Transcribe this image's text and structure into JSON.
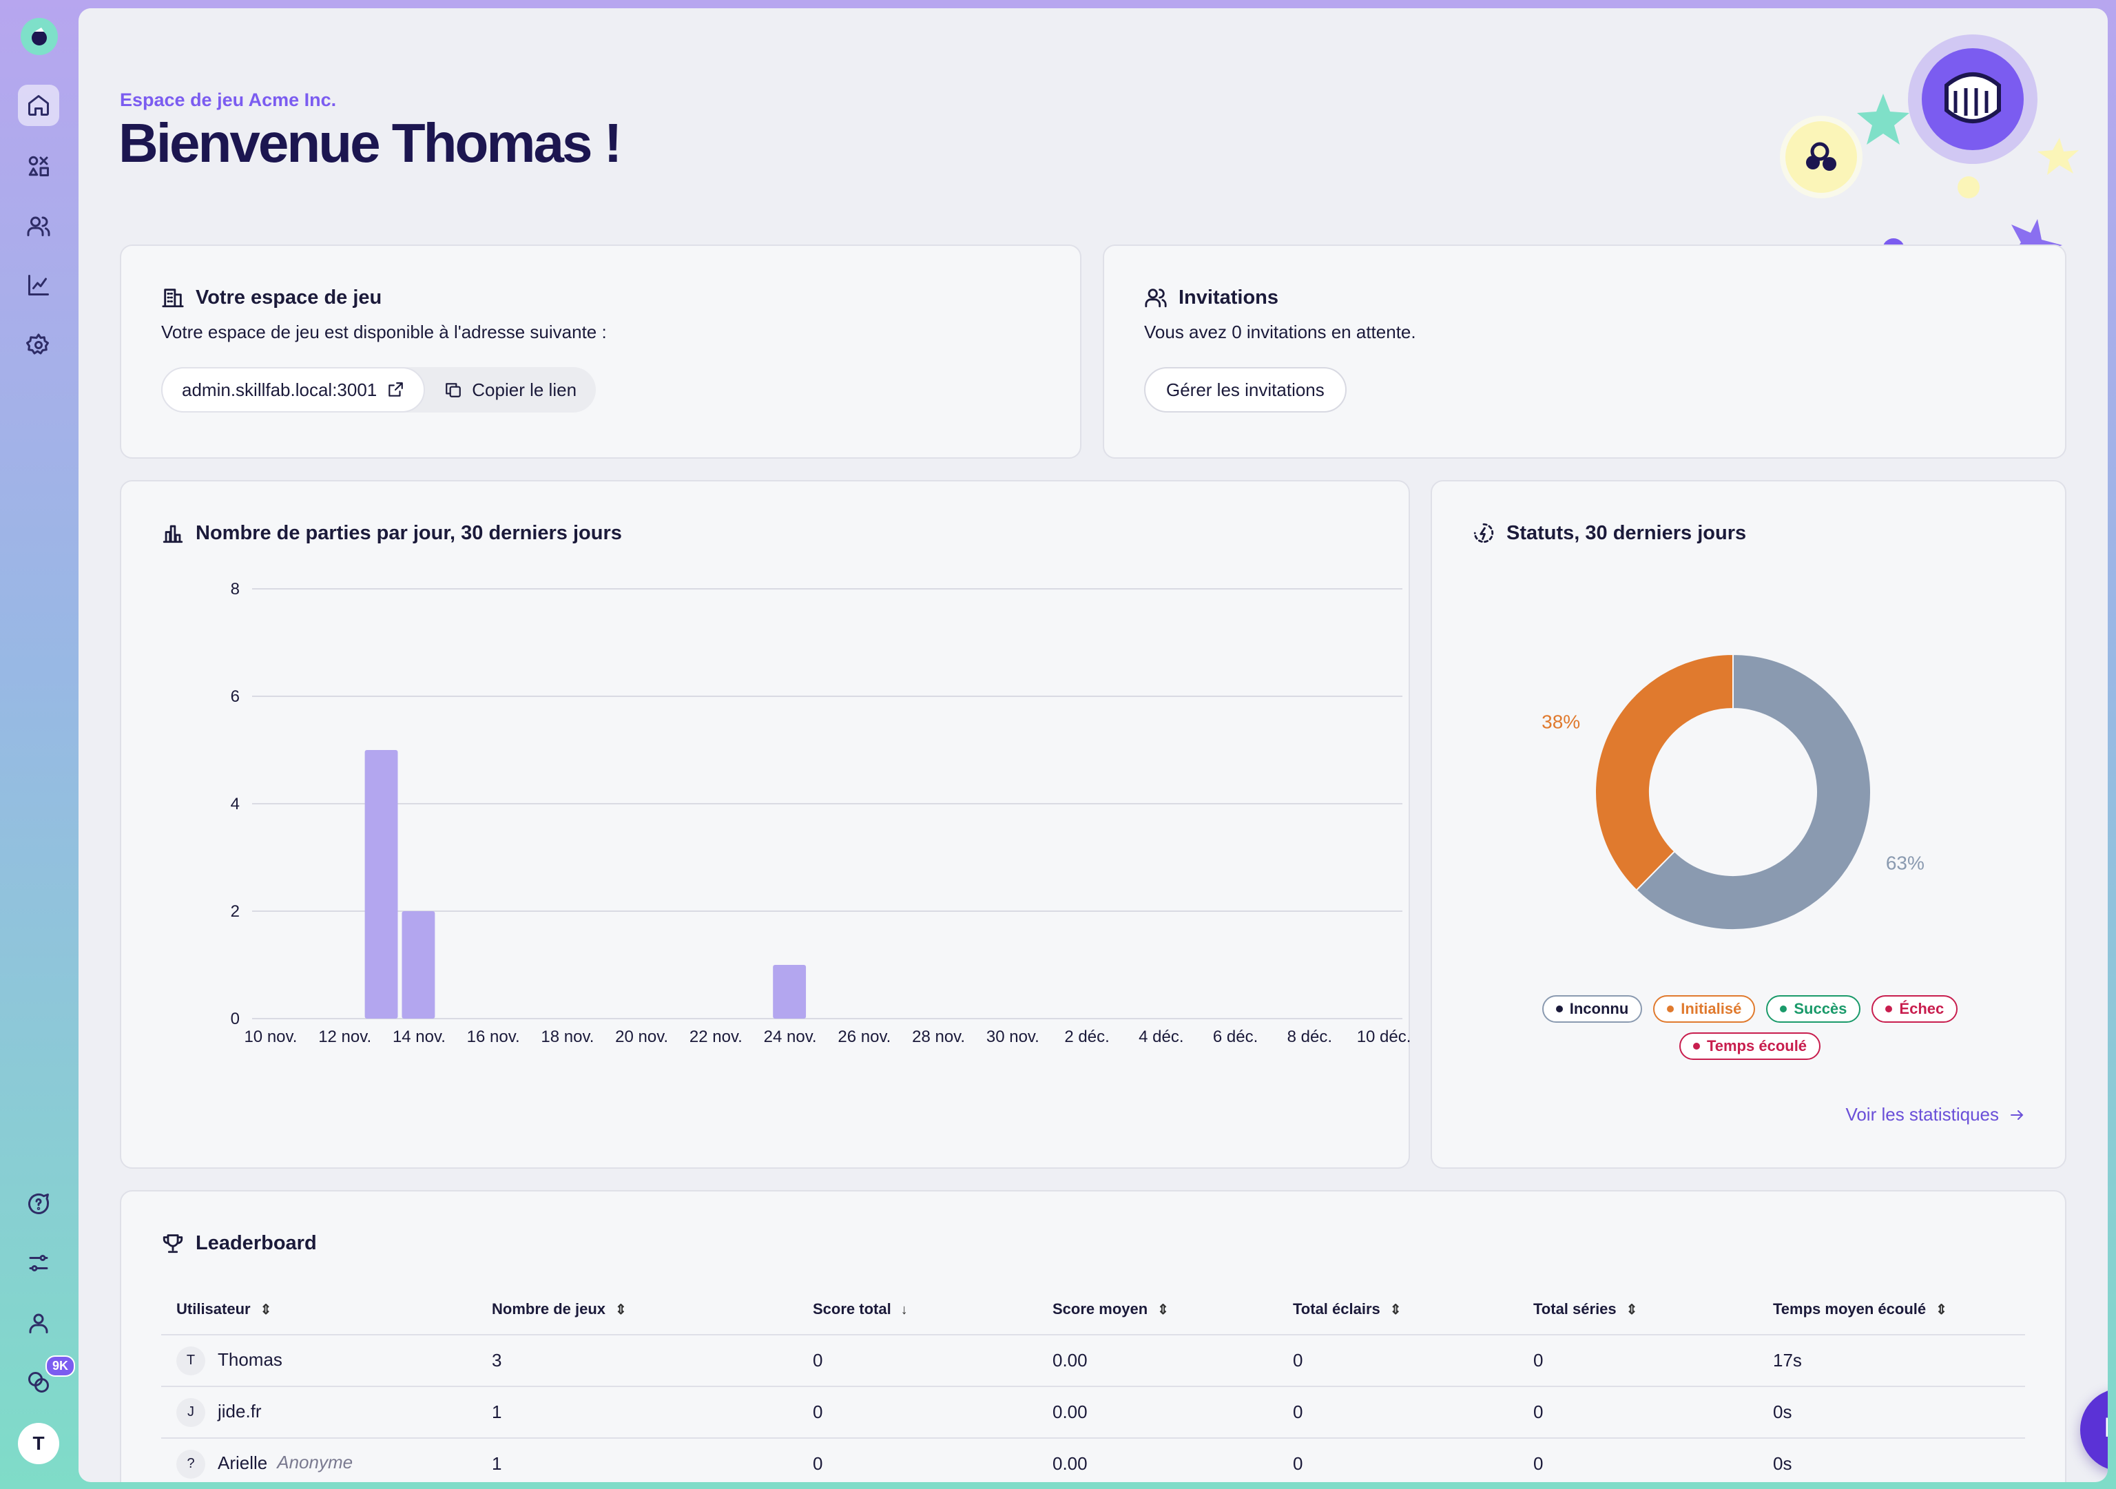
{
  "header": {
    "workspace_label": "Espace de jeu Acme Inc.",
    "welcome_title": "Bienvenue Thomas !"
  },
  "sidebar": {
    "items": [
      "home-icon",
      "games-icon",
      "users-icon",
      "stats-icon",
      "settings-icon"
    ],
    "bottom_items": [
      "help-icon",
      "preferences-icon",
      "account-icon",
      "coins-icon"
    ],
    "coins_badge": "9K",
    "avatar_initial": "T"
  },
  "workspace_card": {
    "title": "Votre espace de jeu",
    "description": "Votre espace de jeu est disponible à l'adresse suivante :",
    "url": "admin.skillfab.local:3001",
    "copy_label": "Copier le lien"
  },
  "invitations_card": {
    "title": "Invitations",
    "description": "Vous avez 0 invitations en attente.",
    "button_label": "Gérer les invitations"
  },
  "games_chart": {
    "title": "Nombre de parties par jour, 30 derniers jours"
  },
  "status_chart": {
    "title": "Statuts, 30 derniers jours",
    "link_label": "Voir les statistiques",
    "legend": [
      {
        "label": "Inconnu",
        "color": "#1b1a3a",
        "border": "#8a9ab0"
      },
      {
        "label": "Initialisé",
        "color": "#e07a2e",
        "border": "#e07a2e"
      },
      {
        "label": "Succès",
        "color": "#1a9a6a",
        "border": "#1a9a6a"
      },
      {
        "label": "Échec",
        "color": "#c81e4e",
        "border": "#c81e4e"
      },
      {
        "label": "Temps écoulé",
        "color": "#c81e4e",
        "border": "#c81e4e"
      }
    ]
  },
  "chart_data": [
    {
      "type": "bar",
      "title": "Nombre de parties par jour, 30 derniers jours",
      "x_tick_labels": [
        "10 nov.",
        "12 nov.",
        "14 nov.",
        "16 nov.",
        "18 nov.",
        "20 nov.",
        "22 nov.",
        "24 nov.",
        "26 nov.",
        "28 nov.",
        "30 nov.",
        "2 déc.",
        "4 déc.",
        "6 déc.",
        "8 déc.",
        "10 déc."
      ],
      "ylim": [
        0,
        8
      ],
      "y_ticks": [
        0,
        2,
        4,
        6,
        8
      ],
      "grid": true,
      "color": "#b3a6ef",
      "values": [
        {
          "date": "13 nov.",
          "value": 5
        },
        {
          "date": "14 nov.",
          "value": 2
        },
        {
          "date": "24 nov.",
          "value": 1
        }
      ]
    },
    {
      "type": "pie",
      "title": "Statuts, 30 derniers jours",
      "slices": [
        {
          "label": "Inconnu",
          "value": 63,
          "display": "63%",
          "color": "#8a9ab0"
        },
        {
          "label": "Initialisé",
          "value": 38,
          "display": "38%",
          "color": "#e07a2e"
        }
      ]
    }
  ],
  "leaderboard": {
    "title": "Leaderboard",
    "columns": [
      "Utilisateur",
      "Nombre de jeux",
      "Score total",
      "Score moyen",
      "Total éclairs",
      "Total séries",
      "Temps moyen écoulé"
    ],
    "rows": [
      {
        "initial": "T",
        "name": "Thomas",
        "tag": "",
        "games": "3",
        "total": "0",
        "avg": "0.00",
        "flash": "0",
        "series": "0",
        "time": "17s"
      },
      {
        "initial": "J",
        "name": "jide.fr",
        "tag": "",
        "games": "1",
        "total": "0",
        "avg": "0.00",
        "flash": "0",
        "series": "0",
        "time": "0s"
      },
      {
        "initial": "?",
        "name": "Arielle",
        "tag": "Anonyme",
        "games": "1",
        "total": "0",
        "avg": "0.00",
        "flash": "0",
        "series": "0",
        "time": "0s"
      }
    ]
  }
}
